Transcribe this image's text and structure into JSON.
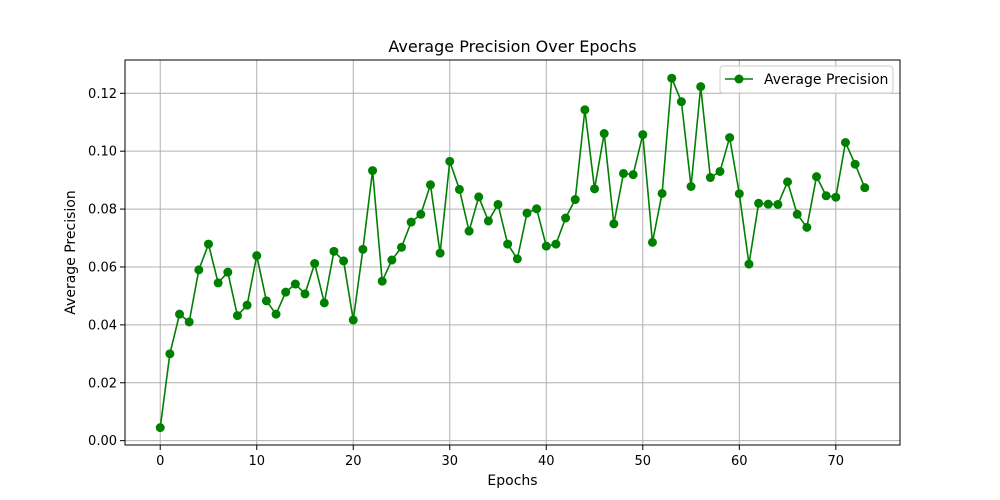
{
  "chart_data": {
    "type": "line",
    "title": "Average Precision Over Epochs",
    "xlabel": "Epochs",
    "ylabel": "Average Precision",
    "xlim": [
      -3.65,
      76.65
    ],
    "ylim": [
      -0.0015,
      0.1315
    ],
    "xticks": [
      0,
      10,
      20,
      30,
      40,
      50,
      60,
      70
    ],
    "xtick_labels": [
      "0",
      "10",
      "20",
      "30",
      "40",
      "50",
      "60",
      "70"
    ],
    "yticks": [
      0.0,
      0.02,
      0.04,
      0.06,
      0.08,
      0.1,
      0.12
    ],
    "ytick_labels": [
      "0.00",
      "0.02",
      "0.04",
      "0.06",
      "0.08",
      "0.10",
      "0.12"
    ],
    "grid": true,
    "legend_position": "top-right",
    "series": [
      {
        "name": "Average Precision",
        "color": "#008000",
        "marker": "circle",
        "x": [
          0,
          1,
          2,
          3,
          4,
          5,
          6,
          7,
          8,
          9,
          10,
          11,
          12,
          13,
          14,
          15,
          16,
          17,
          18,
          19,
          20,
          21,
          22,
          23,
          24,
          25,
          26,
          27,
          28,
          29,
          30,
          31,
          32,
          33,
          34,
          35,
          36,
          37,
          38,
          39,
          40,
          41,
          42,
          43,
          44,
          45,
          46,
          47,
          48,
          49,
          50,
          51,
          52,
          53,
          54,
          55,
          56,
          57,
          58,
          59,
          60,
          61,
          62,
          63,
          64,
          65,
          66,
          67,
          68,
          69,
          70,
          71,
          72,
          73
        ],
        "values": [
          0.0045,
          0.03,
          0.0437,
          0.041,
          0.059,
          0.0679,
          0.0545,
          0.0582,
          0.0432,
          0.0468,
          0.0639,
          0.0483,
          0.0437,
          0.0513,
          0.0541,
          0.0507,
          0.0612,
          0.0476,
          0.0654,
          0.0621,
          0.0417,
          0.0661,
          0.0933,
          0.0551,
          0.0624,
          0.0668,
          0.0755,
          0.0782,
          0.0884,
          0.0648,
          0.0965,
          0.0868,
          0.0724,
          0.0842,
          0.0759,
          0.0816,
          0.0679,
          0.0628,
          0.0786,
          0.0801,
          0.0672,
          0.0679,
          0.0769,
          0.0833,
          0.1143,
          0.087,
          0.1061,
          0.0749,
          0.0923,
          0.0919,
          0.1057,
          0.0685,
          0.0854,
          0.1252,
          0.1171,
          0.0878,
          0.1223,
          0.0909,
          0.093,
          0.1047,
          0.0853,
          0.061,
          0.082,
          0.0817,
          0.0816,
          0.0894,
          0.0782,
          0.0737,
          0.0912,
          0.0846,
          0.0841,
          0.103,
          0.0955,
          0.0874
        ]
      }
    ]
  }
}
